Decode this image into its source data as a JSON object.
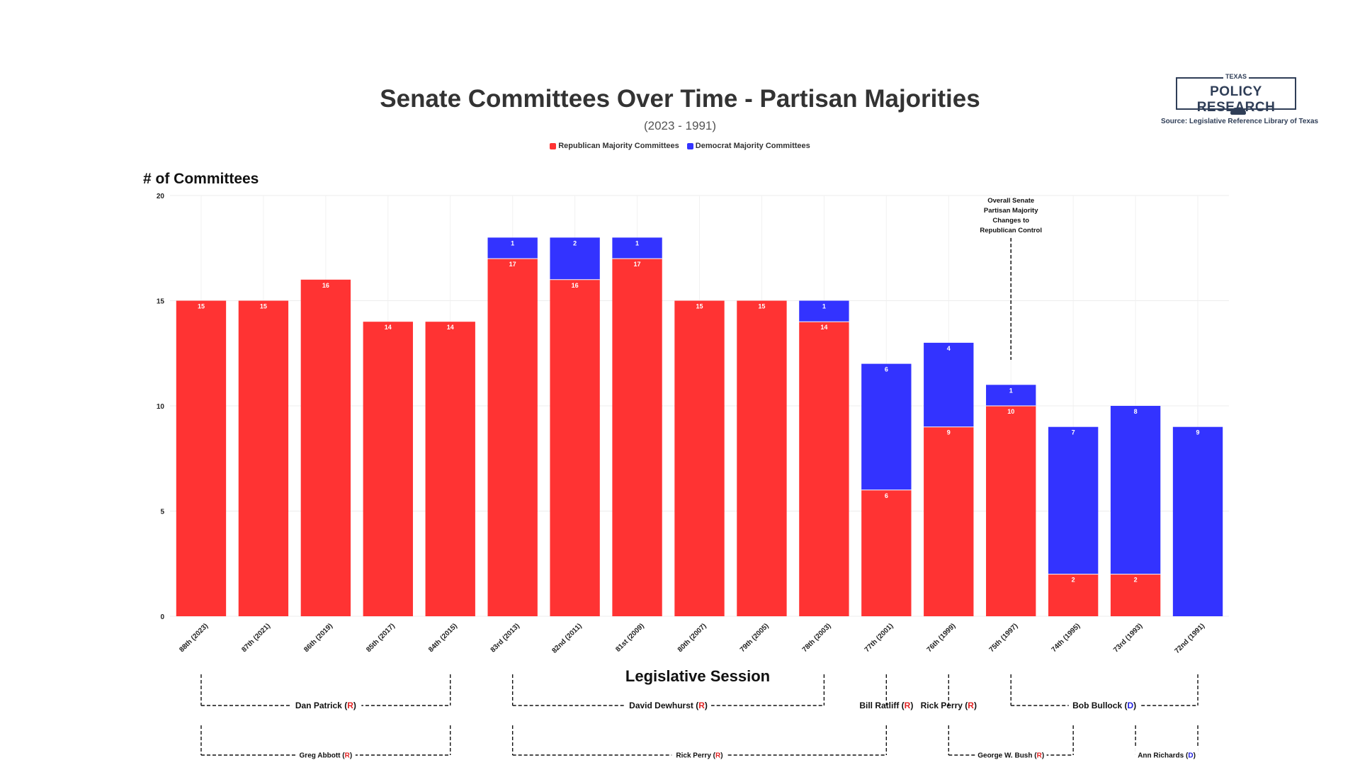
{
  "colors": {
    "republican": "#ff3333",
    "democrat": "#3333ff",
    "brand": "#2f3e57",
    "party_r": "#e02424",
    "party_d": "#2222dd"
  },
  "logo": {
    "top": "TEXAS",
    "main": "POLICY RESEARCH",
    "icon": "armadillo-icon"
  },
  "source": "Source: Legislative Reference Library of Texas",
  "annotation": [
    "Overall Senate",
    "Partisan Majority",
    "Changes to",
    "Republican Control"
  ],
  "chart_data": {
    "type": "bar",
    "stacked": true,
    "title": "Senate Committees Over Time - Partisan Majorities",
    "subtitle": "(2023 - 1991)",
    "ylabel": "# of Committees",
    "xlabel": "Legislative Session",
    "ylim": [
      0,
      20
    ],
    "yticks": [
      0,
      5,
      10,
      15,
      20
    ],
    "grid": true,
    "legend_position": "top-center",
    "categories": [
      "88th (2023)",
      "87th (2021)",
      "86th (2019)",
      "85th (2017)",
      "84th (2015)",
      "83rd (2013)",
      "82nd (2011)",
      "81st (2009)",
      "80th (2007)",
      "79th (2005)",
      "78th (2003)",
      "77th (2001)",
      "76th (1999)",
      "75th (1997)",
      "74th (1995)",
      "73rd (1993)",
      "72nd (1991)"
    ],
    "series": [
      {
        "name": "Republican Majority Committees",
        "values": [
          15,
          15,
          16,
          14,
          14,
          17,
          16,
          17,
          15,
          15,
          14,
          6,
          9,
          10,
          2,
          2,
          0
        ]
      },
      {
        "name": "Democrat Majority Committees",
        "values": [
          0,
          0,
          0,
          0,
          0,
          1,
          2,
          1,
          0,
          0,
          1,
          6,
          4,
          1,
          7,
          8,
          9
        ]
      }
    ],
    "lieutenant_governors": [
      {
        "name": "Dan Patrick",
        "party": "R",
        "from": 0,
        "to": 4
      },
      {
        "name": "David Dewhurst",
        "party": "R",
        "from": 5,
        "to": 10
      },
      {
        "name": "Bill Ratliff",
        "party": "R",
        "from": 11,
        "to": 11
      },
      {
        "name": "Rick Perry",
        "party": "R",
        "from": 12,
        "to": 12
      },
      {
        "name": "Bob Bullock",
        "party": "D",
        "from": 13,
        "to": 16
      }
    ],
    "governors": [
      {
        "name": "Greg Abbott",
        "party": "R",
        "from": 0,
        "to": 4
      },
      {
        "name": "Rick Perry",
        "party": "R",
        "from": 5,
        "to": 11
      },
      {
        "name": "George W. Bush",
        "party": "R",
        "from": 12,
        "to": 14
      },
      {
        "name": "Ann Richards",
        "party": "D",
        "from": 15,
        "to": 16
      }
    ]
  }
}
